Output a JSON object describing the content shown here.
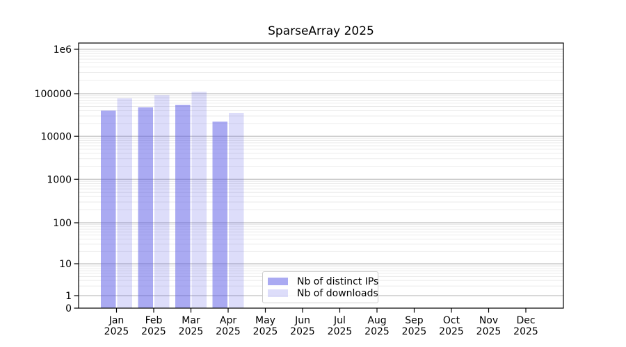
{
  "chart_data": {
    "type": "bar",
    "title": "SparseArray 2025",
    "year_label": "2025",
    "months": [
      "Jan",
      "Feb",
      "Mar",
      "Apr",
      "May",
      "Jun",
      "Jul",
      "Aug",
      "Sep",
      "Oct",
      "Nov",
      "Dec"
    ],
    "series": [
      {
        "name": "Nb of distinct IPs",
        "color": "rgba(85,85,229,0.5)",
        "values": [
          40000,
          48000,
          55000,
          22000,
          null,
          null,
          null,
          null,
          null,
          null,
          null,
          null
        ]
      },
      {
        "name": "Nb of downloads",
        "color": "rgba(85,85,229,0.2)",
        "values": [
          78000,
          92000,
          110000,
          35000,
          null,
          null,
          null,
          null,
          null,
          null,
          null,
          null
        ]
      }
    ],
    "yscale": "symlog",
    "ylim": [
      0,
      1000000
    ],
    "y_ticks": [
      {
        "value": 0,
        "label": "0"
      },
      {
        "value": 1,
        "label": "1"
      },
      {
        "value": 10,
        "label": "10"
      },
      {
        "value": 100,
        "label": "100"
      },
      {
        "value": 1000,
        "label": "1000"
      },
      {
        "value": 10000,
        "label": "10000"
      },
      {
        "value": 100000,
        "label": "100000"
      },
      {
        "value": 1000000,
        "label": "1e6"
      }
    ],
    "grid": "major and minor horizontal gridlines, log minor decades",
    "legend_position": "lower center"
  },
  "colors": {
    "background": "#ffffff",
    "bar_distinct_ips": "rgba(85,85,229,0.5)",
    "bar_downloads": "rgba(85,85,229,0.2)",
    "grid_major": "#b0b0b0",
    "grid_minor": "#e6e6e6",
    "spine": "#000000",
    "text": "#000000",
    "legend_border": "#cccccc"
  }
}
